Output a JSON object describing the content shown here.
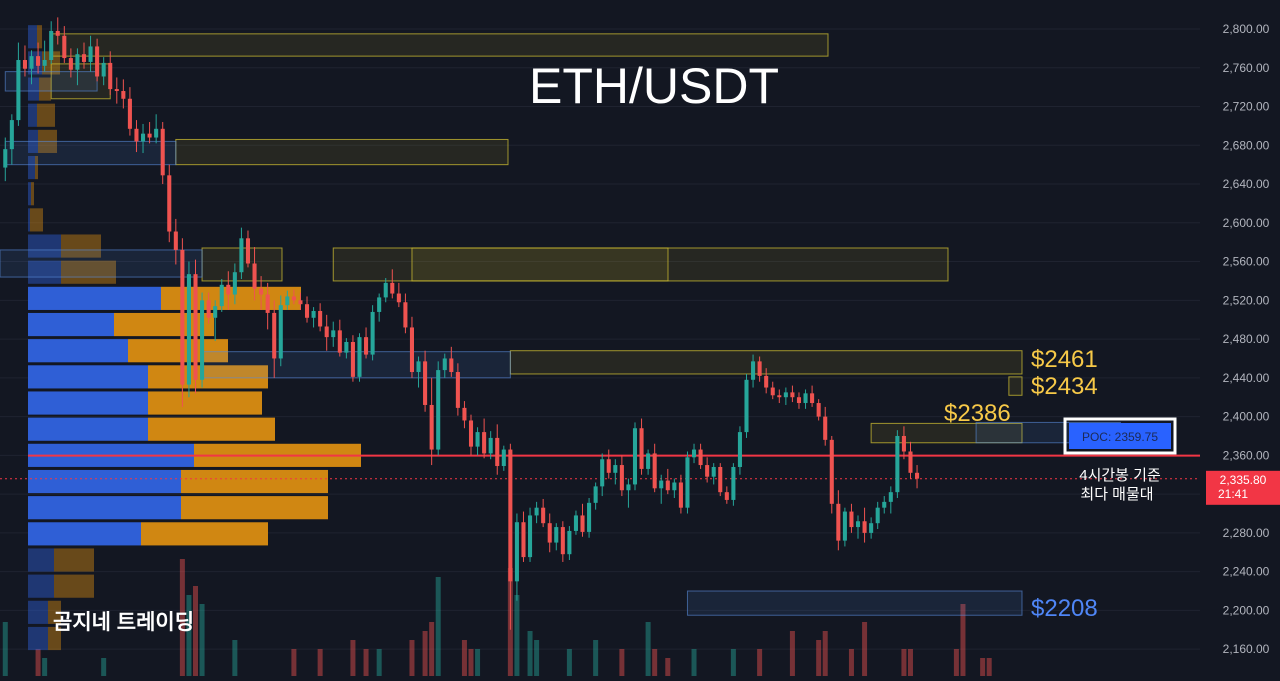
{
  "chart_data": {
    "type": "candlestick",
    "title": "ETH/USDT",
    "watermark": "곰지네 트레이딩",
    "y_axis": {
      "ticks": [
        2800,
        2760,
        2720,
        2680,
        2640,
        2600,
        2560,
        2520,
        2480,
        2440,
        2400,
        2360,
        2320,
        2280,
        2240,
        2200,
        2160
      ],
      "tick_labels": [
        "2,800.00",
        "2,760.00",
        "2,720.00",
        "2,680.00",
        "2,640.00",
        "2,600.00",
        "2,560.00",
        "2,520.00",
        "2,480.00",
        "2,440.00",
        "2,400.00",
        "2,360.00",
        "2,320.00",
        "2,280.00",
        "2,240.00",
        "2,200.00",
        "2,160.00"
      ],
      "range": [
        2144,
        2818
      ]
    },
    "current_price": {
      "value": 2335.8,
      "label": "2,335.80",
      "countdown": "21:41",
      "color": "#f23645"
    },
    "poc": {
      "value": 2359.75,
      "label": "POC: 2359.75",
      "annotation_line1": "4시간봉 기준",
      "annotation_line2": "최다 매물대"
    },
    "level_labels": [
      {
        "value": 2461,
        "label": "$2461",
        "color": "#f7c948"
      },
      {
        "value": 2434,
        "label": "$2434",
        "color": "#f7c948"
      },
      {
        "value": 2386,
        "label": "$2386",
        "color": "#f7c948"
      },
      {
        "value": 2208,
        "label": "$2208",
        "color": "#4f86f7"
      }
    ],
    "zones": [
      {
        "kind": "supply",
        "start_bar": 7,
        "end_bar": 999,
        "top": 2795,
        "bottom": 2772
      },
      {
        "kind": "supply",
        "start_bar": 7,
        "end_bar": 16,
        "top": 2764,
        "bottom": 2728
      },
      {
        "kind": "supply",
        "start_bar": 26,
        "end_bar": 999,
        "top": 2686,
        "bottom": 2660
      },
      {
        "kind": "supply",
        "start_bar": 30,
        "end_bar": 999,
        "top": 2574,
        "bottom": 2540
      },
      {
        "kind": "supply",
        "start_bar": 50,
        "end_bar": 999,
        "top": 2574,
        "bottom": 2540
      },
      {
        "kind": "supply",
        "start_bar": 62,
        "end_bar": 999,
        "top": 2574,
        "bottom": 2540
      },
      {
        "kind": "supply",
        "start_bar": 77,
        "end_bar": 999,
        "top": 2468,
        "bottom": 2444
      },
      {
        "kind": "supply",
        "start_bar": 153,
        "end_bar": 999,
        "top": 2441,
        "bottom": 2422
      },
      {
        "kind": "supply",
        "start_bar": 132,
        "end_bar": 999,
        "top": 2393,
        "bottom": 2373
      },
      {
        "kind": "demand",
        "start_bar": 0,
        "end_bar": 14,
        "top": 2756,
        "bottom": 2736
      },
      {
        "kind": "demand",
        "start_bar": 0,
        "end_bar": 26,
        "top": 2684,
        "bottom": 2660
      },
      {
        "kind": "demand",
        "start_bar": -1,
        "end_bar": 30,
        "top": 2572,
        "bottom": 2544
      },
      {
        "kind": "demand",
        "start_bar": 30,
        "end_bar": 77,
        "top": 2467,
        "bottom": 2440
      },
      {
        "kind": "demand",
        "start_bar": 148,
        "end_bar": 170,
        "top": 2394,
        "bottom": 2373
      },
      {
        "kind": "demand",
        "start_bar": 104,
        "end_bar": 999,
        "top": 2220,
        "bottom": 2195
      }
    ],
    "volume_profile": {
      "price_step": 27,
      "rows": [
        {
          "price": 2792,
          "buy": 9,
          "sell": 5
        },
        {
          "price": 2765,
          "buy": 14,
          "sell": 18
        },
        {
          "price": 2738,
          "buy": 11,
          "sell": 12
        },
        {
          "price": 2711,
          "buy": 9,
          "sell": 18
        },
        {
          "price": 2684,
          "buy": 10,
          "sell": 19
        },
        {
          "price": 2657,
          "buy": 7,
          "sell": 3
        },
        {
          "price": 2630,
          "buy": 3,
          "sell": 3
        },
        {
          "price": 2603,
          "buy": 2,
          "sell": 13
        },
        {
          "price": 2576,
          "buy": 33,
          "sell": 40
        },
        {
          "price": 2549,
          "buy": 33,
          "sell": 55
        },
        {
          "price": 2522,
          "buy": 133,
          "sell": 140
        },
        {
          "price": 2495,
          "buy": 86,
          "sell": 100
        },
        {
          "price": 2468,
          "buy": 100,
          "sell": 100
        },
        {
          "price": 2441,
          "buy": 120,
          "sell": 120
        },
        {
          "price": 2414,
          "buy": 120,
          "sell": 114
        },
        {
          "price": 2387,
          "buy": 120,
          "sell": 127
        },
        {
          "price": 2360,
          "buy": 166,
          "sell": 167
        },
        {
          "price": 2333,
          "buy": 153,
          "sell": 147
        },
        {
          "price": 2306,
          "buy": 153,
          "sell": 147
        },
        {
          "price": 2279,
          "buy": 113,
          "sell": 127
        },
        {
          "price": 2252,
          "buy": 26,
          "sell": 40
        },
        {
          "price": 2225,
          "buy": 26,
          "sell": 40
        },
        {
          "price": 2198,
          "buy": 20,
          "sell": 13
        },
        {
          "price": 2171,
          "buy": 20,
          "sell": 13
        }
      ]
    },
    "candles": [
      [
        2657,
        2688,
        2643,
        2676
      ],
      [
        2676,
        2712,
        2660,
        2706
      ],
      [
        2706,
        2786,
        2700,
        2768
      ],
      [
        2768,
        2783,
        2751,
        2759
      ],
      [
        2759,
        2778,
        2743,
        2772
      ],
      [
        2772,
        2786,
        2754,
        2762
      ],
      [
        2762,
        2788,
        2756,
        2768
      ],
      [
        2768,
        2808,
        2764,
        2798
      ],
      [
        2798,
        2812,
        2784,
        2793
      ],
      [
        2793,
        2803,
        2765,
        2770
      ],
      [
        2770,
        2780,
        2750,
        2758
      ],
      [
        2758,
        2780,
        2742,
        2774
      ],
      [
        2774,
        2786,
        2759,
        2766
      ],
      [
        2766,
        2793,
        2756,
        2782
      ],
      [
        2782,
        2790,
        2746,
        2751
      ],
      [
        2751,
        2771,
        2742,
        2765
      ],
      [
        2765,
        2777,
        2732,
        2738
      ],
      [
        2738,
        2750,
        2723,
        2736
      ],
      [
        2736,
        2748,
        2718,
        2728
      ],
      [
        2728,
        2740,
        2690,
        2697
      ],
      [
        2697,
        2706,
        2673,
        2684
      ],
      [
        2684,
        2702,
        2672,
        2692
      ],
      [
        2692,
        2704,
        2682,
        2688
      ],
      [
        2688,
        2712,
        2682,
        2697
      ],
      [
        2697,
        2704,
        2640,
        2649
      ],
      [
        2649,
        2660,
        2580,
        2591
      ],
      [
        2591,
        2604,
        2557,
        2572
      ],
      [
        2572,
        2584,
        2410,
        2433
      ],
      [
        2433,
        2560,
        2420,
        2547
      ],
      [
        2547,
        2562,
        2424,
        2438
      ],
      [
        2438,
        2528,
        2430,
        2520
      ],
      [
        2520,
        2528,
        2496,
        2502
      ],
      [
        2502,
        2520,
        2478,
        2514
      ],
      [
        2514,
        2542,
        2508,
        2536
      ],
      [
        2536,
        2550,
        2510,
        2526
      ],
      [
        2526,
        2558,
        2516,
        2549
      ],
      [
        2549,
        2595,
        2542,
        2584
      ],
      [
        2584,
        2592,
        2554,
        2558
      ],
      [
        2558,
        2575,
        2520,
        2532
      ],
      [
        2532,
        2545,
        2510,
        2526
      ],
      [
        2526,
        2538,
        2490,
        2507
      ],
      [
        2507,
        2520,
        2440,
        2460
      ],
      [
        2460,
        2525,
        2452,
        2515
      ],
      [
        2515,
        2530,
        2510,
        2524
      ],
      [
        2524,
        2531,
        2516,
        2520
      ],
      [
        2520,
        2528,
        2510,
        2516
      ],
      [
        2516,
        2524,
        2497,
        2502
      ],
      [
        2502,
        2513,
        2492,
        2509
      ],
      [
        2509,
        2517,
        2488,
        2493
      ],
      [
        2493,
        2505,
        2468,
        2482
      ],
      [
        2482,
        2498,
        2472,
        2489
      ],
      [
        2489,
        2500,
        2462,
        2466
      ],
      [
        2466,
        2481,
        2460,
        2477
      ],
      [
        2477,
        2484,
        2436,
        2441
      ],
      [
        2441,
        2486,
        2436,
        2482
      ],
      [
        2482,
        2492,
        2460,
        2464
      ],
      [
        2464,
        2515,
        2458,
        2508
      ],
      [
        2508,
        2527,
        2498,
        2523
      ],
      [
        2523,
        2543,
        2518,
        2538
      ],
      [
        2538,
        2552,
        2522,
        2527
      ],
      [
        2527,
        2538,
        2513,
        2518
      ],
      [
        2518,
        2527,
        2486,
        2492
      ],
      [
        2492,
        2503,
        2440,
        2446
      ],
      [
        2446,
        2462,
        2430,
        2457
      ],
      [
        2457,
        2468,
        2405,
        2412
      ],
      [
        2412,
        2440,
        2350,
        2366
      ],
      [
        2366,
        2457,
        2360,
        2448
      ],
      [
        2448,
        2465,
        2440,
        2460
      ],
      [
        2460,
        2472,
        2441,
        2446
      ],
      [
        2446,
        2455,
        2401,
        2409
      ],
      [
        2409,
        2416,
        2388,
        2396
      ],
      [
        2396,
        2402,
        2360,
        2369
      ],
      [
        2369,
        2389,
        2360,
        2384
      ],
      [
        2384,
        2398,
        2357,
        2362
      ],
      [
        2362,
        2385,
        2356,
        2378
      ],
      [
        2378,
        2392,
        2340,
        2349
      ],
      [
        2349,
        2370,
        2344,
        2366
      ],
      [
        2366,
        2372,
        2180,
        2230
      ],
      [
        2230,
        2300,
        2210,
        2291
      ],
      [
        2291,
        2302,
        2250,
        2255
      ],
      [
        2255,
        2306,
        2250,
        2298
      ],
      [
        2298,
        2312,
        2290,
        2306
      ],
      [
        2306,
        2315,
        2286,
        2290
      ],
      [
        2290,
        2300,
        2260,
        2270
      ],
      [
        2270,
        2290,
        2262,
        2286
      ],
      [
        2286,
        2292,
        2250,
        2258
      ],
      [
        2258,
        2287,
        2252,
        2282
      ],
      [
        2282,
        2303,
        2278,
        2298
      ],
      [
        2298,
        2310,
        2276,
        2281
      ],
      [
        2281,
        2316,
        2275,
        2311
      ],
      [
        2311,
        2332,
        2304,
        2328
      ],
      [
        2328,
        2362,
        2318,
        2356
      ],
      [
        2356,
        2366,
        2336,
        2342
      ],
      [
        2342,
        2356,
        2330,
        2350
      ],
      [
        2350,
        2360,
        2318,
        2324
      ],
      [
        2324,
        2336,
        2306,
        2330
      ],
      [
        2330,
        2394,
        2324,
        2388
      ],
      [
        2388,
        2398,
        2340,
        2346
      ],
      [
        2346,
        2366,
        2340,
        2362
      ],
      [
        2362,
        2372,
        2322,
        2326
      ],
      [
        2326,
        2340,
        2310,
        2334
      ],
      [
        2334,
        2346,
        2320,
        2324
      ],
      [
        2324,
        2336,
        2316,
        2332
      ],
      [
        2332,
        2340,
        2300,
        2306
      ],
      [
        2306,
        2364,
        2300,
        2358
      ],
      [
        2358,
        2372,
        2352,
        2366
      ],
      [
        2366,
        2372,
        2346,
        2350
      ],
      [
        2350,
        2358,
        2332,
        2338
      ],
      [
        2338,
        2352,
        2330,
        2348
      ],
      [
        2348,
        2352,
        2318,
        2322
      ],
      [
        2322,
        2328,
        2310,
        2314
      ],
      [
        2314,
        2352,
        2308,
        2348
      ],
      [
        2348,
        2390,
        2340,
        2384
      ],
      [
        2384,
        2444,
        2378,
        2438
      ],
      [
        2438,
        2464,
        2430,
        2457
      ],
      [
        2457,
        2462,
        2436,
        2442
      ],
      [
        2442,
        2450,
        2424,
        2430
      ],
      [
        2430,
        2436,
        2418,
        2422
      ],
      [
        2422,
        2428,
        2414,
        2420
      ],
      [
        2420,
        2430,
        2412,
        2425
      ],
      [
        2425,
        2432,
        2415,
        2420
      ],
      [
        2420,
        2425,
        2408,
        2414
      ],
      [
        2414,
        2428,
        2408,
        2424
      ],
      [
        2424,
        2432,
        2410,
        2414
      ],
      [
        2414,
        2418,
        2396,
        2400
      ],
      [
        2400,
        2410,
        2370,
        2376
      ],
      [
        2376,
        2380,
        2300,
        2310
      ],
      [
        2310,
        2324,
        2262,
        2272
      ],
      [
        2272,
        2306,
        2266,
        2302
      ],
      [
        2302,
        2310,
        2280,
        2286
      ],
      [
        2286,
        2298,
        2274,
        2292
      ],
      [
        2292,
        2306,
        2270,
        2280
      ],
      [
        2280,
        2296,
        2274,
        2290
      ],
      [
        2290,
        2312,
        2284,
        2306
      ],
      [
        2306,
        2318,
        2300,
        2312
      ],
      [
        2312,
        2328,
        2300,
        2322
      ],
      [
        2322,
        2386,
        2316,
        2380
      ],
      [
        2380,
        2390,
        2356,
        2364
      ],
      [
        2364,
        2374,
        2336,
        2342
      ],
      [
        2342,
        2350,
        2326,
        2336
      ]
    ],
    "x_span_bars": 155.5,
    "volumes": [
      {
        "bar": 0,
        "v": 0.6
      },
      {
        "bar": 5,
        "v": 0.3
      },
      {
        "bar": 6,
        "v": 0.2
      },
      {
        "bar": 15,
        "v": 0.2
      },
      {
        "bar": 27,
        "v": 1.3
      },
      {
        "bar": 28,
        "v": 0.9
      },
      {
        "bar": 29,
        "v": 1.0
      },
      {
        "bar": 30,
        "v": 0.8
      },
      {
        "bar": 35,
        "v": 0.4
      },
      {
        "bar": 44,
        "v": 0.3
      },
      {
        "bar": 48,
        "v": 0.3
      },
      {
        "bar": 53,
        "v": 0.4
      },
      {
        "bar": 55,
        "v": 0.3
      },
      {
        "bar": 57,
        "v": 0.3
      },
      {
        "bar": 62,
        "v": 0.4
      },
      {
        "bar": 64,
        "v": 0.5
      },
      {
        "bar": 65,
        "v": 0.6
      },
      {
        "bar": 66,
        "v": 1.1
      },
      {
        "bar": 70,
        "v": 0.4
      },
      {
        "bar": 71,
        "v": 0.3
      },
      {
        "bar": 72,
        "v": 0.3
      },
      {
        "bar": 77,
        "v": 1.2
      },
      {
        "bar": 78,
        "v": 0.9
      },
      {
        "bar": 80,
        "v": 0.5
      },
      {
        "bar": 81,
        "v": 0.4
      },
      {
        "bar": 86,
        "v": 0.3
      },
      {
        "bar": 90,
        "v": 0.4
      },
      {
        "bar": 94,
        "v": 0.3
      },
      {
        "bar": 98,
        "v": 0.6
      },
      {
        "bar": 99,
        "v": 0.3
      },
      {
        "bar": 101,
        "v": 0.2
      },
      {
        "bar": 105,
        "v": 0.3
      },
      {
        "bar": 111,
        "v": 0.3
      },
      {
        "bar": 115,
        "v": 0.3
      },
      {
        "bar": 120,
        "v": 0.5
      },
      {
        "bar": 124,
        "v": 0.4
      },
      {
        "bar": 125,
        "v": 0.5
      },
      {
        "bar": 129,
        "v": 0.3
      },
      {
        "bar": 131,
        "v": 0.6
      },
      {
        "bar": 137,
        "v": 0.3
      },
      {
        "bar": 138,
        "v": 0.3
      },
      {
        "bar": 145,
        "v": 0.3
      },
      {
        "bar": 146,
        "v": 0.8
      },
      {
        "bar": 149,
        "v": 0.2
      },
      {
        "bar": 150,
        "v": 0.2
      }
    ]
  }
}
